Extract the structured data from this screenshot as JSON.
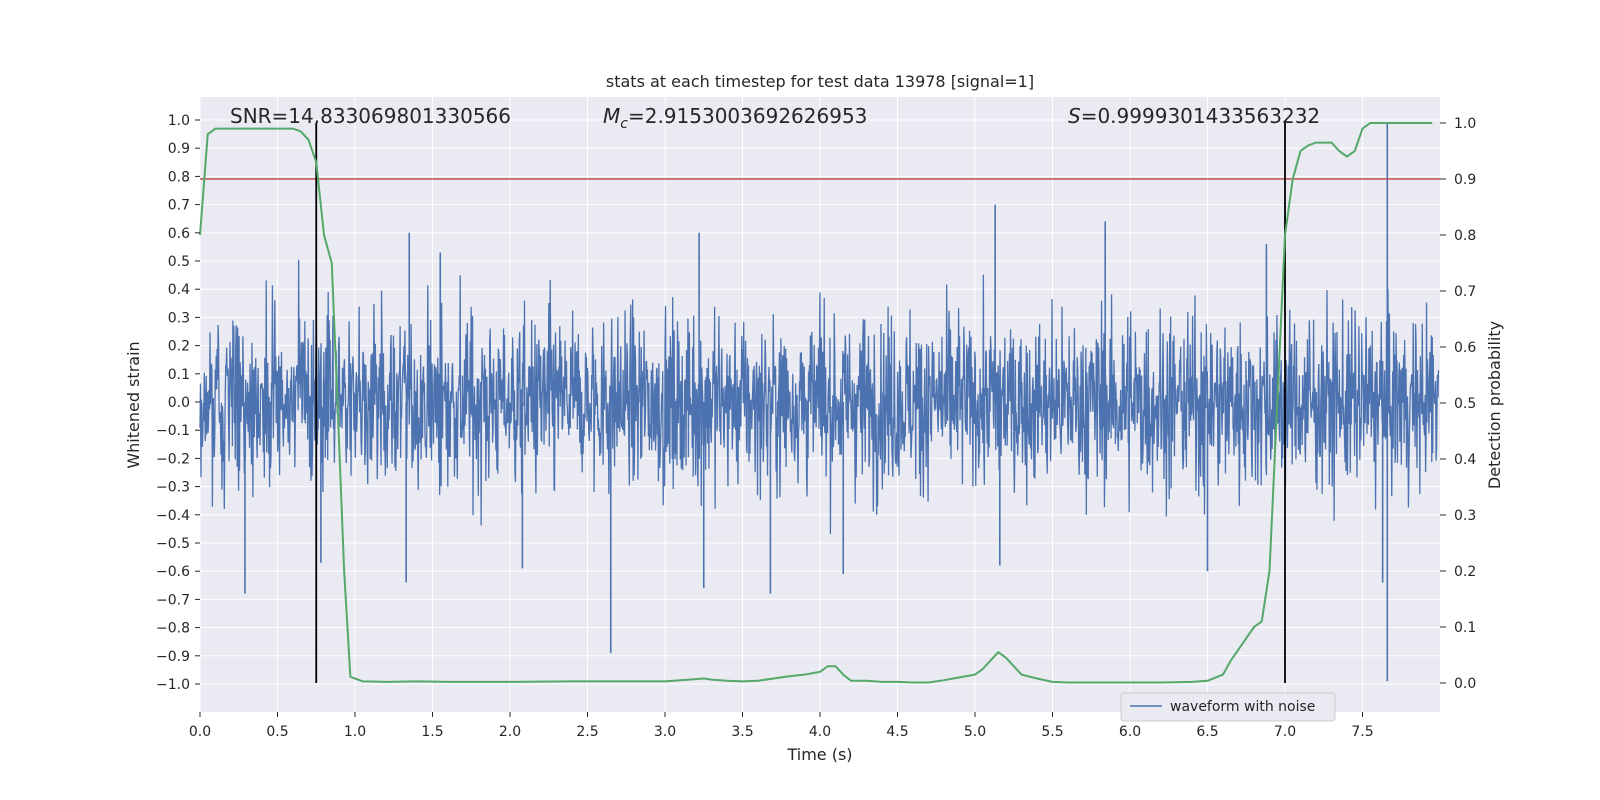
{
  "chart_data": {
    "type": "line",
    "title": "stats at each timestep for test data 13978 [signal=1]",
    "xlabel": "Time (s)",
    "ylabel_left": "Whitened strain",
    "ylabel_right": "Detection probability",
    "xlim": [
      0.0,
      8.0
    ],
    "ylim_left": [
      -1.1,
      1.05
    ],
    "ylim_right": [
      -0.05,
      1.03
    ],
    "x_ticks": [
      0.0,
      0.5,
      1.0,
      1.5,
      2.0,
      2.5,
      3.0,
      3.5,
      4.0,
      4.5,
      5.0,
      5.5,
      6.0,
      6.5,
      7.0,
      7.5
    ],
    "x_tick_labels": [
      "0.0",
      "0.5",
      "1.0",
      "1.5",
      "2.0",
      "2.5",
      "3.0",
      "3.5",
      "4.0",
      "4.5",
      "5.0",
      "5.5",
      "6.0",
      "6.5",
      "7.0",
      "7.5"
    ],
    "y_left_ticks": [
      1.0,
      0.9,
      0.8,
      0.7,
      0.6,
      0.5,
      0.4,
      0.3,
      0.2,
      0.1,
      0.0,
      -0.1,
      -0.2,
      -0.3,
      -0.4,
      -0.5,
      -0.6,
      -0.7,
      -0.8,
      -0.9,
      -1.0
    ],
    "y_left_tick_labels": [
      "1.0",
      "0.9",
      "0.8",
      "0.7",
      "0.6",
      "0.5",
      "0.4",
      "0.3",
      "0.2",
      "0.1",
      "0.0",
      "−0.1",
      "−0.2",
      "−0.3",
      "−0.4",
      "−0.5",
      "−0.6",
      "−0.7",
      "−0.8",
      "−0.9",
      "−1.0"
    ],
    "y_right_ticks": [
      1.0,
      0.9,
      0.8,
      0.7,
      0.6,
      0.5,
      0.4,
      0.3,
      0.2,
      0.1,
      0.0
    ],
    "y_right_tick_labels": [
      "1.0",
      "0.9",
      "0.8",
      "0.7",
      "0.6",
      "0.5",
      "0.4",
      "0.3",
      "0.2",
      "0.1",
      "0.0"
    ],
    "grid": true,
    "legend": {
      "placement": "lower-right",
      "entries": [
        "waveform with noise"
      ]
    },
    "annotations": {
      "snr": "SNR=14.833069801330566",
      "mc_symbol": "M",
      "mc_sub": "c",
      "mc_value": "=2.9153003692626953",
      "s_symbol": "S",
      "s_value": "=0.9999301433563232"
    },
    "waveform": {
      "name": "waveform with noise",
      "color": "#4c72b0",
      "t_start": 0.0,
      "t_end": 7.99,
      "spikes": [
        {
          "t": 0.29,
          "y": -0.68
        },
        {
          "t": 0.75,
          "y": -0.52
        },
        {
          "t": 0.78,
          "y": -0.57
        },
        {
          "t": 1.33,
          "y": -0.64
        },
        {
          "t": 1.35,
          "y": 0.6
        },
        {
          "t": 1.55,
          "y": 0.53
        },
        {
          "t": 2.08,
          "y": -0.59
        },
        {
          "t": 2.65,
          "y": -0.89
        },
        {
          "t": 3.22,
          "y": 0.6
        },
        {
          "t": 3.25,
          "y": -0.66
        },
        {
          "t": 3.68,
          "y": -0.68
        },
        {
          "t": 4.15,
          "y": -0.61
        },
        {
          "t": 5.13,
          "y": 0.7
        },
        {
          "t": 5.16,
          "y": -0.58
        },
        {
          "t": 5.84,
          "y": 0.64
        },
        {
          "t": 6.5,
          "y": -0.6
        },
        {
          "t": 6.88,
          "y": 0.56
        },
        {
          "t": 7.63,
          "y": -0.64
        },
        {
          "t": 7.66,
          "y": 0.99
        },
        {
          "t": 7.66,
          "y": -0.99
        }
      ]
    },
    "detection_probability": {
      "color": "#55a868",
      "x": [
        0.0,
        0.05,
        0.1,
        0.2,
        0.3,
        0.4,
        0.5,
        0.6,
        0.65,
        0.7,
        0.75,
        0.8,
        0.85,
        0.88,
        0.93,
        0.97,
        1.05,
        1.2,
        1.4,
        1.6,
        1.8,
        2.0,
        2.4,
        2.8,
        3.0,
        3.1,
        3.2,
        3.25,
        3.3,
        3.4,
        3.5,
        3.6,
        3.7,
        3.8,
        3.9,
        4.0,
        4.05,
        4.1,
        4.15,
        4.2,
        4.3,
        4.4,
        4.5,
        4.6,
        4.7,
        4.8,
        4.9,
        5.0,
        5.05,
        5.1,
        5.15,
        5.2,
        5.25,
        5.3,
        5.4,
        5.5,
        5.6,
        5.8,
        6.0,
        6.2,
        6.4,
        6.5,
        6.6,
        6.65,
        6.7,
        6.75,
        6.8,
        6.85,
        6.9,
        6.95,
        7.0,
        7.05,
        7.1,
        7.15,
        7.2,
        7.3,
        7.35,
        7.4,
        7.45,
        7.5,
        7.55,
        7.6,
        7.7,
        7.8,
        7.95
      ],
      "y": [
        0.8,
        0.98,
        0.99,
        0.99,
        0.99,
        0.99,
        0.99,
        0.99,
        0.985,
        0.97,
        0.93,
        0.8,
        0.75,
        0.55,
        0.2,
        0.011,
        0.003,
        0.002,
        0.003,
        0.002,
        0.002,
        0.002,
        0.003,
        0.003,
        0.003,
        0.005,
        0.007,
        0.008,
        0.006,
        0.004,
        0.003,
        0.004,
        0.008,
        0.012,
        0.015,
        0.02,
        0.03,
        0.03,
        0.015,
        0.004,
        0.004,
        0.002,
        0.002,
        0.001,
        0.001,
        0.005,
        0.01,
        0.015,
        0.025,
        0.04,
        0.055,
        0.045,
        0.03,
        0.015,
        0.008,
        0.002,
        0.001,
        0.001,
        0.001,
        0.001,
        0.002,
        0.004,
        0.015,
        0.04,
        0.06,
        0.08,
        0.1,
        0.11,
        0.2,
        0.5,
        0.8,
        0.9,
        0.95,
        0.96,
        0.965,
        0.965,
        0.95,
        0.94,
        0.95,
        0.99,
        1.0,
        1.0,
        1.0,
        1.0,
        1.0
      ]
    },
    "threshold_line": {
      "color": "#c44e52",
      "y": 0.9
    },
    "vertical_markers": {
      "color": "#000000",
      "x": [
        0.75,
        7.0
      ]
    }
  }
}
